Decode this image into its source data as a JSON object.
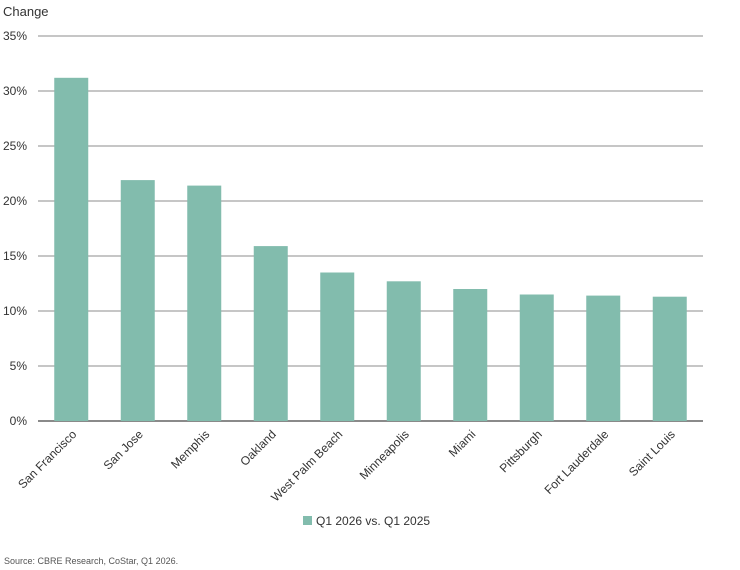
{
  "chart_data": {
    "type": "bar",
    "ylabel": "Change",
    "ylim": [
      0,
      35
    ],
    "yticks": [
      0,
      5,
      10,
      15,
      20,
      25,
      30,
      35
    ],
    "ytick_labels": [
      "0%",
      "5%",
      "10%",
      "15%",
      "20%",
      "25%",
      "30%",
      "35%"
    ],
    "categories": [
      "San Francisco",
      "San Jose",
      "Memphis",
      "Oakland",
      "West Palm Beach",
      "Minneapolis",
      "Miami",
      "Pittsburgh",
      "Fort Lauderdale",
      "Saint Louis"
    ],
    "series": [
      {
        "name": "Q1 2026 vs. Q1 2025",
        "color": "#82bcad",
        "values": [
          31.2,
          21.9,
          21.4,
          15.9,
          13.5,
          12.7,
          12.0,
          11.5,
          11.4,
          11.3
        ]
      }
    ],
    "grid": true,
    "legend_position": "bottom"
  },
  "source": "Source: CBRE Research, CoStar, Q1 2026."
}
